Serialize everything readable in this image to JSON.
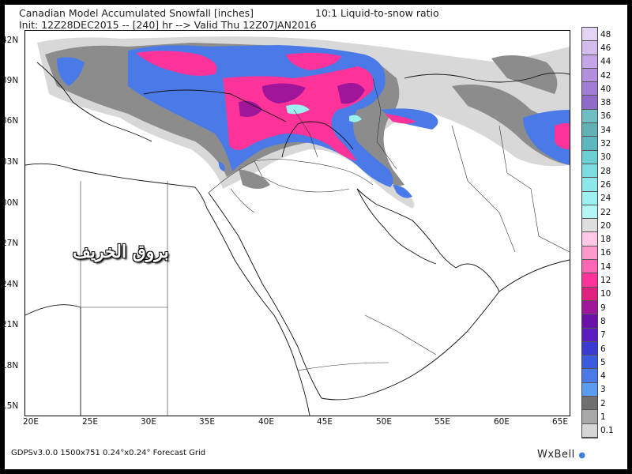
{
  "header": {
    "title": "Canadian Model Accumulated Snowfall [inches]",
    "ratio": "10:1 Liquid-to-snow ratio",
    "init_line": "Init: 12Z28DEC2015 -- [240] hr --> Valid Thu 12Z07JAN2016"
  },
  "map": {
    "lat_labels": [
      "42N",
      "39N",
      "36N",
      "33N",
      "30N",
      "27N",
      "24N",
      "21N",
      "18N",
      "15N"
    ],
    "lon_labels": [
      "20E",
      "25E",
      "30E",
      "35E",
      "40E",
      "45E",
      "50E",
      "55E",
      "60E",
      "65E"
    ],
    "extent": {
      "lon": [
        20,
        66
      ],
      "lat": [
        13.5,
        42
      ]
    },
    "watermark": "بروق الخريف"
  },
  "legend": {
    "labels": [
      "48",
      "46",
      "44",
      "42",
      "40",
      "38",
      "36",
      "34",
      "32",
      "30",
      "28",
      "26",
      "24",
      "22",
      "20",
      "18",
      "16",
      "14",
      "12",
      "10",
      "9",
      "8",
      "7",
      "6",
      "5",
      "4",
      "3",
      "2",
      "1",
      "0.1"
    ],
    "colors": [
      "#e2d4f2",
      "#d3bcec",
      "#c4a6e6",
      "#b390dd",
      "#a27dd4",
      "#8f6ac8",
      "#6fbfc2",
      "#62b1b3",
      "#5eb7bd",
      "#6ccfd2",
      "#7cdcdf",
      "#8de6e8",
      "#9df0f0",
      "#b4f6f6",
      "#dedede",
      "#ffc8e6",
      "#ff99cc",
      "#ff66b3",
      "#ff3399",
      "#e0207e",
      "#a0169a",
      "#6a12a8",
      "#5a1cc0",
      "#3a3ad0",
      "#3a5ae0",
      "#4a7ae8",
      "#5a9cf0",
      "#707070",
      "#a8a8a8",
      "#d6d6d6"
    ]
  },
  "footer": {
    "info": "GDPSv3.0.0 1500x751 0.24°x0.24° Forecast Grid",
    "brand": "WxBell"
  }
}
